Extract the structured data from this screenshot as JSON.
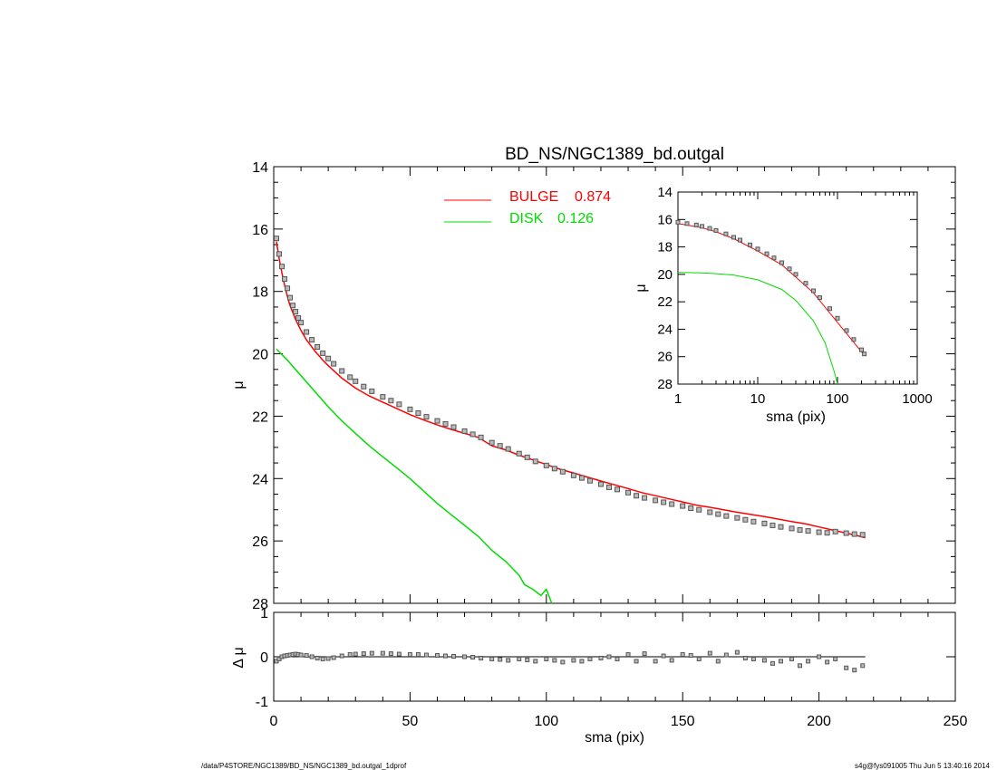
{
  "chart_data": [
    {
      "type": "scatter",
      "title": "BD_NS/NGC1389_bd.outgal",
      "xlabel": "",
      "ylabel": "μ",
      "xlim": [
        0,
        250
      ],
      "ylim": [
        28,
        14
      ],
      "y_inverted": true,
      "yticks": [
        "14",
        "16",
        "18",
        "20",
        "22",
        "24",
        "26",
        "28"
      ],
      "legend": {
        "placement": "top-center",
        "entries": [
          {
            "name": "BULGE",
            "value": "0.874",
            "color": "#ff0000"
          },
          {
            "name": "DISK",
            "value": "0.126",
            "color": "#00dd00"
          }
        ]
      },
      "series": [
        {
          "name": "data",
          "marker": "square",
          "color": "#555555",
          "x": [
            1,
            2,
            3,
            4,
            5,
            6,
            7,
            8,
            9,
            10,
            12,
            14,
            16,
            18,
            20,
            22,
            25,
            28,
            30,
            33,
            36,
            40,
            43,
            46,
            50,
            53,
            56,
            60,
            63,
            66,
            70,
            73,
            76,
            80,
            83,
            86,
            90,
            93,
            96,
            100,
            103,
            106,
            110,
            113,
            116,
            120,
            123,
            126,
            130,
            133,
            136,
            140,
            143,
            146,
            150,
            153,
            156,
            160,
            163,
            166,
            170,
            173,
            176,
            180,
            183,
            186,
            190,
            193,
            196,
            200,
            203,
            206,
            210,
            213,
            216
          ],
          "y": [
            16.3,
            16.8,
            17.2,
            17.6,
            17.9,
            18.2,
            18.45,
            18.65,
            18.85,
            19.0,
            19.3,
            19.55,
            19.78,
            19.98,
            20.15,
            20.32,
            20.55,
            20.75,
            20.88,
            21.05,
            21.2,
            21.38,
            21.5,
            21.62,
            21.78,
            21.9,
            22.02,
            22.15,
            22.25,
            22.35,
            22.48,
            22.58,
            22.68,
            22.85,
            22.95,
            23.05,
            23.2,
            23.32,
            23.45,
            23.58,
            23.68,
            23.78,
            23.9,
            23.98,
            24.07,
            24.18,
            24.28,
            24.35,
            24.45,
            24.55,
            24.62,
            24.7,
            24.76,
            24.82,
            24.88,
            24.95,
            25.0,
            25.08,
            25.14,
            25.2,
            25.26,
            25.32,
            25.38,
            25.44,
            25.5,
            25.55,
            25.6,
            25.65,
            25.68,
            25.72,
            25.74,
            25.7,
            25.75,
            25.78,
            25.8
          ]
        },
        {
          "name": "BULGE",
          "type": "line",
          "color": "#ff0000",
          "x": [
            1,
            2,
            3,
            4,
            5,
            6,
            8,
            10,
            12,
            15,
            18,
            20,
            25,
            30,
            35,
            40,
            45,
            50,
            55,
            60,
            65,
            70,
            75,
            80,
            85,
            90,
            95,
            100,
            105,
            110,
            115,
            120,
            125,
            130,
            135,
            140,
            145,
            150,
            155,
            160,
            165,
            170,
            175,
            180,
            185,
            190,
            195,
            200,
            205,
            210,
            215,
            217
          ],
          "y": [
            16.4,
            16.95,
            17.4,
            17.8,
            18.15,
            18.45,
            18.9,
            19.25,
            19.55,
            19.9,
            20.2,
            20.38,
            20.78,
            21.1,
            21.35,
            21.55,
            21.75,
            21.95,
            22.12,
            22.28,
            22.42,
            22.55,
            22.68,
            22.95,
            23.08,
            23.25,
            23.4,
            23.55,
            23.7,
            23.82,
            23.95,
            24.08,
            24.2,
            24.32,
            24.45,
            24.55,
            24.65,
            24.75,
            24.85,
            24.92,
            25.0,
            25.08,
            25.15,
            25.22,
            25.3,
            25.38,
            25.45,
            25.55,
            25.65,
            25.75,
            25.85,
            25.9
          ]
        },
        {
          "name": "DISK",
          "type": "line",
          "color": "#00dd00",
          "x": [
            1,
            5,
            10,
            15,
            20,
            25,
            30,
            35,
            40,
            45,
            50,
            55,
            60,
            65,
            70,
            75,
            80,
            85,
            90,
            92,
            95,
            98,
            100,
            102
          ],
          "y": [
            19.85,
            20.2,
            20.7,
            21.2,
            21.7,
            22.15,
            22.55,
            22.95,
            23.3,
            23.65,
            24.0,
            24.4,
            24.8,
            25.15,
            25.5,
            25.85,
            26.3,
            26.65,
            27.1,
            27.4,
            27.55,
            27.75,
            27.55,
            28.0
          ]
        }
      ]
    },
    {
      "type": "scatter",
      "title": "",
      "xlabel": "sma (pix)",
      "ylabel": "Δ μ",
      "xlim": [
        0,
        250
      ],
      "ylim": [
        -1,
        1
      ],
      "xticks": [
        "0",
        "50",
        "100",
        "150",
        "200",
        "250"
      ],
      "yticks": [
        "1",
        "0",
        "-1"
      ],
      "reference_line": 0,
      "series": [
        {
          "name": "residual",
          "marker": "square",
          "color": "#555555",
          "x": [
            1,
            2,
            3,
            4,
            5,
            6,
            7,
            8,
            9,
            10,
            12,
            14,
            16,
            18,
            20,
            22,
            25,
            28,
            30,
            33,
            36,
            40,
            43,
            46,
            50,
            53,
            56,
            60,
            63,
            66,
            70,
            73,
            76,
            80,
            83,
            86,
            90,
            93,
            96,
            100,
            103,
            106,
            110,
            113,
            116,
            120,
            123,
            126,
            130,
            133,
            136,
            140,
            143,
            146,
            150,
            153,
            156,
            160,
            163,
            166,
            170,
            173,
            176,
            180,
            183,
            186,
            190,
            193,
            196,
            200,
            203,
            206,
            210,
            213,
            216
          ],
          "y": [
            -0.1,
            -0.05,
            0.0,
            0.02,
            0.03,
            0.04,
            0.05,
            0.06,
            0.05,
            0.04,
            0.03,
            0.0,
            -0.03,
            -0.05,
            -0.04,
            -0.02,
            0.02,
            0.05,
            0.06,
            0.07,
            0.08,
            0.08,
            0.07,
            0.06,
            0.05,
            0.05,
            0.04,
            0.03,
            0.02,
            0.01,
            0.0,
            -0.01,
            -0.03,
            -0.05,
            -0.06,
            -0.08,
            -0.05,
            -0.07,
            -0.1,
            -0.05,
            -0.08,
            -0.12,
            -0.08,
            -0.1,
            -0.05,
            -0.03,
            0.0,
            -0.05,
            0.05,
            -0.1,
            0.07,
            -0.1,
            0.02,
            -0.08,
            0.05,
            0.03,
            -0.05,
            0.08,
            -0.1,
            0.04,
            0.1,
            -0.03,
            -0.05,
            -0.08,
            -0.15,
            -0.1,
            -0.05,
            -0.2,
            -0.1,
            0.0,
            -0.12,
            -0.05,
            -0.25,
            -0.3,
            -0.2
          ]
        }
      ]
    },
    {
      "type": "scatter",
      "title": "",
      "xlabel": "sma (pix)",
      "ylabel": "μ",
      "xscale": "log",
      "xlim": [
        1,
        1000
      ],
      "ylim": [
        28,
        14
      ],
      "xticks": [
        "1",
        "10",
        "100",
        "1000"
      ],
      "yticks": [
        "14",
        "16",
        "18",
        "20",
        "22",
        "24",
        "26",
        "28"
      ],
      "series": [
        {
          "name": "data",
          "marker": "square",
          "color": "#555555",
          "x": [
            1,
            1.3,
            1.7,
            2,
            2.5,
            3,
            4,
            5,
            6,
            8,
            10,
            13,
            16,
            20,
            25,
            30,
            40,
            50,
            60,
            80,
            100,
            130,
            160,
            200,
            217
          ],
          "y": [
            16.2,
            16.3,
            16.4,
            16.5,
            16.65,
            16.8,
            17.05,
            17.3,
            17.5,
            17.85,
            18.15,
            18.5,
            18.8,
            19.15,
            19.6,
            20.0,
            20.65,
            21.2,
            21.7,
            22.5,
            23.2,
            24.1,
            24.75,
            25.5,
            25.8
          ]
        },
        {
          "name": "BULGE",
          "type": "line",
          "color": "#ff0000",
          "x": [
            1,
            2,
            3,
            5,
            10,
            20,
            30,
            50,
            100,
            217
          ],
          "y": [
            16.3,
            16.6,
            16.9,
            17.4,
            18.3,
            19.3,
            20.2,
            21.35,
            23.5,
            25.9
          ]
        },
        {
          "name": "DISK",
          "type": "line",
          "color": "#00dd00",
          "x": [
            1,
            2,
            3,
            5,
            10,
            20,
            30,
            50,
            70,
            90,
            100
          ],
          "y": [
            19.85,
            19.9,
            19.95,
            20.05,
            20.4,
            21.1,
            21.9,
            23.4,
            25.0,
            27.0,
            28.0
          ]
        }
      ]
    }
  ],
  "footer": {
    "left": "/data/P4STORE/NGC1389/BD_NS/NGC1389_bd.outgal_1dprof",
    "right": "s4g@fys091005  Thu Jun  5 13:40:16 2014"
  }
}
